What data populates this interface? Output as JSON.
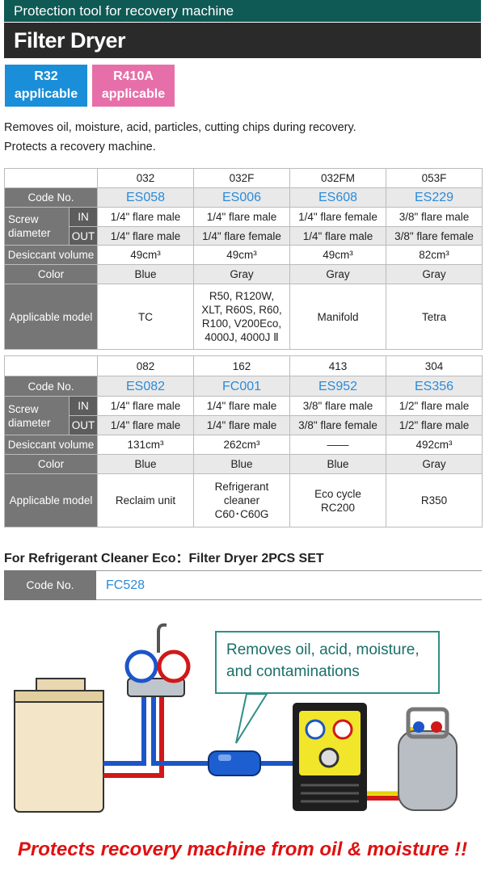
{
  "header": {
    "subtitle": "Protection tool for recovery machine",
    "title": "Filter Dryer"
  },
  "badges": [
    {
      "refrigerant": "R32",
      "text": "applicable"
    },
    {
      "refrigerant": "R410A",
      "text": "applicable"
    }
  ],
  "description": [
    "Removes oil, moisture, acid, particles, cutting chips during recovery.",
    "Protects a recovery machine."
  ],
  "tables": [
    {
      "row_labels": {
        "code": "Code No.",
        "screw": "Screw diameter",
        "in": "IN",
        "out": "OUT",
        "desiccant": "Desiccant volume",
        "color": "Color",
        "applicable": "Applicable model"
      },
      "models": [
        "032",
        "032F",
        "032FM",
        "053F"
      ],
      "codes": [
        "ES058",
        "ES006",
        "ES608",
        "ES229"
      ],
      "screw_in": [
        "1/4\" flare male",
        "1/4\" flare male",
        "1/4\" flare female",
        "3/8\" flare male"
      ],
      "screw_out": [
        "1/4\" flare male",
        "1/4\" flare female",
        "1/4\" flare male",
        "3/8\" flare female"
      ],
      "desiccant": [
        "49cm³",
        "49cm³",
        "49cm³",
        "82cm³"
      ],
      "color": [
        "Blue",
        "Gray",
        "Gray",
        "Gray"
      ],
      "applicable": [
        "TC",
        "R50, R120W,\nXLT, R60S, R60,\nR100, V200Eco,\n4000J, 4000J Ⅱ",
        "Manifold",
        "Tetra"
      ]
    },
    {
      "row_labels": {
        "code": "Code No.",
        "screw": "Screw diameter",
        "in": "IN",
        "out": "OUT",
        "desiccant": "Desiccant volume",
        "color": "Color",
        "applicable": "Applicable model"
      },
      "models": [
        "082",
        "162",
        "413",
        "304"
      ],
      "codes": [
        "ES082",
        "FC001",
        "ES952",
        "ES356"
      ],
      "screw_in": [
        "1/4\" flare male",
        "1/4\" flare male",
        "3/8\" flare male",
        "1/2\" flare male"
      ],
      "screw_out": [
        "1/4\" flare male",
        "1/4\" flare male",
        "3/8\" flare female",
        "1/2\" flare male"
      ],
      "desiccant": [
        "131cm³",
        "262cm³",
        "——",
        "492cm³"
      ],
      "color": [
        "Blue",
        "Blue",
        "Blue",
        "Gray"
      ],
      "applicable": [
        "Reclaim unit",
        "Refrigerant\ncleaner\nC60･C60G",
        "Eco cycle\nRC200",
        "R350"
      ]
    }
  ],
  "set_section": {
    "title": "For Refrigerant Cleaner Eco：Filter Dryer 2PCS SET",
    "code_label": "Code No.",
    "code": "FC528"
  },
  "diagram": {
    "callout": "Removes oil, acid, moisture,\nand contaminations"
  },
  "slogan": "Protects recovery machine from oil & moisture !!"
}
